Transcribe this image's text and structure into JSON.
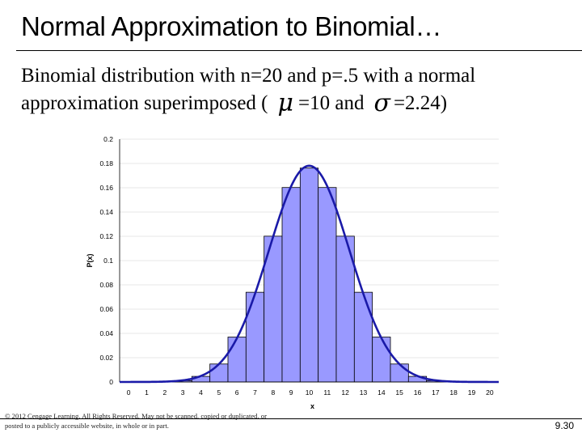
{
  "slide": {
    "title": "Normal Approximation to Binomial…",
    "subtitle_line1": "Binomial distribution with n=20 and p=.5 with a normal",
    "subtitle_line2_prefix": "approximation superimposed (",
    "mu_symbol": "μ",
    "mu_value": "=10 and",
    "sigma_symbol": "σ",
    "sigma_value": "=2.24)",
    "copyright": "© 2012 Cengage Learning. All Rights Reserved. May not be scanned, copied or duplicated, or posted to a publicly accessible website, in whole or in part.",
    "page_number": "9.30"
  },
  "chart_data": {
    "type": "bar",
    "xlabel": "x",
    "ylabel": "P(x)",
    "categories": [
      "0",
      "1",
      "2",
      "3",
      "4",
      "5",
      "6",
      "7",
      "8",
      "9",
      "10",
      "11",
      "12",
      "13",
      "14",
      "15",
      "16",
      "17",
      "18",
      "19",
      "20"
    ],
    "values": [
      0.0,
      0.0,
      0.0002,
      0.0011,
      0.0046,
      0.0148,
      0.037,
      0.0739,
      0.1201,
      0.1602,
      0.1762,
      0.1602,
      0.1201,
      0.0739,
      0.037,
      0.0148,
      0.0046,
      0.0011,
      0.0002,
      0.0,
      0.0
    ],
    "ylim": [
      0,
      0.2
    ],
    "yticks": [
      "0",
      "0.02",
      "0.04",
      "0.06",
      "0.08",
      "0.1",
      "0.12",
      "0.14",
      "0.16",
      "0.18",
      "0.2"
    ],
    "overlay": {
      "type": "normal-curve",
      "mean": 10,
      "sd": 2.24
    },
    "bar_color": "#9999ff",
    "curve_color": "#1a1aa8"
  }
}
